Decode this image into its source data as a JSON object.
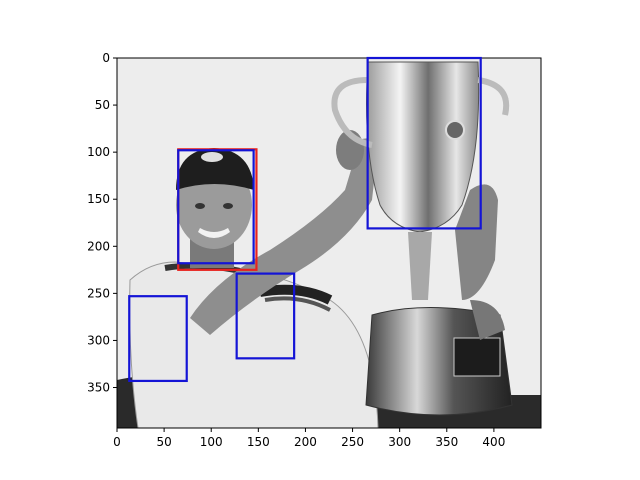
{
  "figure": {
    "description_type": "matplotlib image with bounding-box overlays",
    "x_axis": {
      "range": [
        0,
        450
      ],
      "ticks": [
        0,
        50,
        100,
        150,
        200,
        250,
        300,
        350,
        400
      ],
      "labels": [
        "0",
        "50",
        "100",
        "150",
        "200",
        "250",
        "300",
        "350",
        "400"
      ]
    },
    "y_axis": {
      "range": [
        0,
        393
      ],
      "inverted": true,
      "ticks": [
        0,
        50,
        100,
        150,
        200,
        250,
        300,
        350
      ],
      "labels": [
        "0",
        "50",
        "100",
        "150",
        "200",
        "250",
        "300",
        "350"
      ]
    },
    "boxes": [
      {
        "name": "red-box-face",
        "color": "#e8231f",
        "x0": 65,
        "y0": 97,
        "x1": 148,
        "y1": 225
      },
      {
        "name": "blue-box-face",
        "color": "#1414d6",
        "x0": 65,
        "y0": 98,
        "x1": 145,
        "y1": 218
      },
      {
        "name": "blue-box-trophy",
        "color": "#1414d6",
        "x0": 266,
        "y0": 0,
        "x1": 386,
        "y1": 181
      },
      {
        "name": "blue-box-shirt",
        "color": "#1414d6",
        "x0": 127,
        "y0": 229,
        "x1": 188,
        "y1": 319
      },
      {
        "name": "blue-box-left",
        "color": "#1414d6",
        "x0": 13,
        "y0": 253,
        "x1": 74,
        "y1": 343
      }
    ]
  }
}
